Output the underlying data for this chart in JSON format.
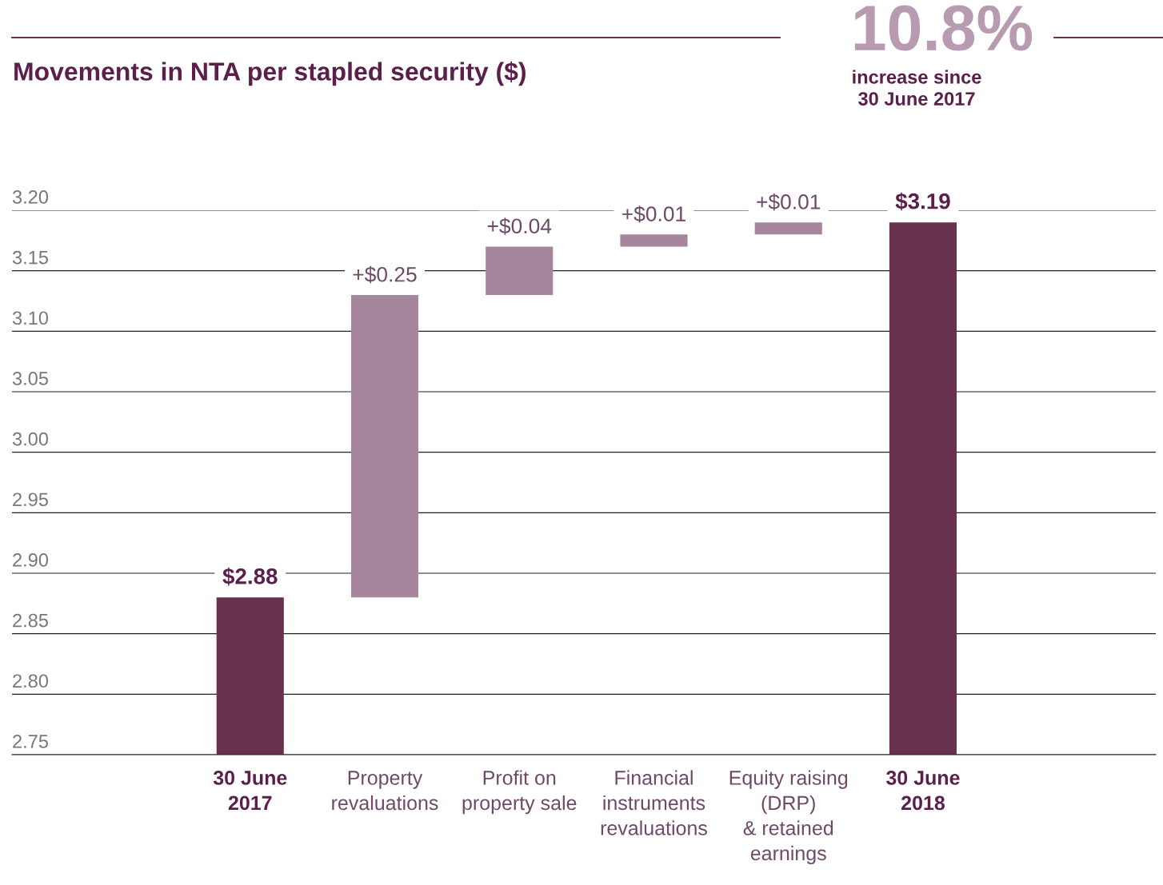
{
  "chart_data": {
    "type": "bar",
    "title": "Movements in NTA per stapled security ($)",
    "categories": [
      "30 June\n2017",
      "Property\nrevaluations",
      "Profit on\nproperty sale",
      "Financial\ninstruments\nrevaluations",
      "Equity raising\n(DRP)\n& retained\nearnings",
      "30 June\n2018"
    ],
    "values": [
      2.88,
      0.25,
      0.04,
      0.01,
      0.01,
      3.19
    ],
    "base": [
      null,
      2.88,
      3.13,
      3.17,
      3.18,
      null
    ],
    "colors": [
      "#68324f",
      "#a6869d",
      "#a6869d",
      "#a6869d",
      "#a6869d",
      "#68324f"
    ],
    "value_labels": [
      "$2.88",
      "+$0.25",
      "+$0.04",
      "+$0.01",
      "+$0.01",
      "$3.19"
    ],
    "ylim": [
      2.75,
      3.2
    ],
    "yticks": [
      2.75,
      {
        "value": 2.8,
        "label": "2.80"
      },
      2.85,
      {
        "value": 2.9,
        "label": "2.90"
      },
      2.95,
      {
        "value": 3.0,
        "label": "3.00"
      },
      3.05,
      {
        "value": 3.1,
        "label": "3.10"
      },
      3.15,
      {
        "value": 3.2,
        "label": "3.20"
      }
    ],
    "grid": "y",
    "annotations": [
      "10.8%",
      "increase since\n30 June 2017"
    ]
  }
}
